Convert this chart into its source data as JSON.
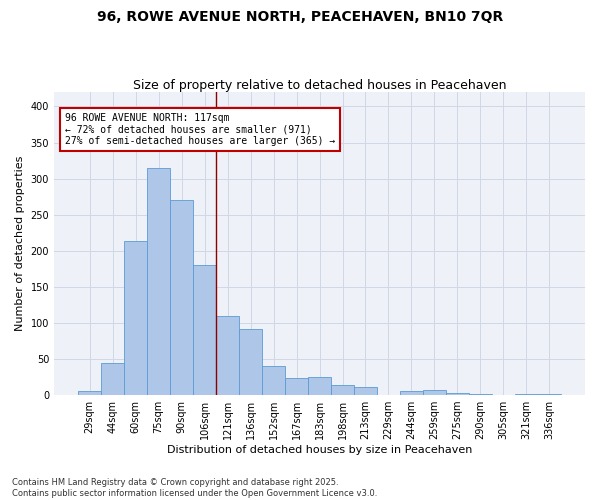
{
  "title": "96, ROWE AVENUE NORTH, PEACEHAVEN, BN10 7QR",
  "subtitle": "Size of property relative to detached houses in Peacehaven",
  "xlabel": "Distribution of detached houses by size in Peacehaven",
  "ylabel": "Number of detached properties",
  "bar_labels": [
    "29sqm",
    "44sqm",
    "60sqm",
    "75sqm",
    "90sqm",
    "106sqm",
    "121sqm",
    "136sqm",
    "152sqm",
    "167sqm",
    "183sqm",
    "198sqm",
    "213sqm",
    "229sqm",
    "244sqm",
    "259sqm",
    "275sqm",
    "290sqm",
    "305sqm",
    "321sqm",
    "336sqm"
  ],
  "bar_values": [
    5,
    44,
    213,
    315,
    271,
    180,
    110,
    91,
    40,
    23,
    25,
    14,
    11,
    0,
    6,
    7,
    3,
    1,
    0,
    1,
    2
  ],
  "bar_color": "#aec6e8",
  "bar_edge_color": "#5b9bd5",
  "vline_x": 5.5,
  "vline_color": "#8b0000",
  "annotation_text": "96 ROWE AVENUE NORTH: 117sqm\n← 72% of detached houses are smaller (971)\n27% of semi-detached houses are larger (365) →",
  "annotation_box_color": "#ffffff",
  "annotation_box_edge_color": "#c00000",
  "ylim": [
    0,
    420
  ],
  "yticks": [
    0,
    50,
    100,
    150,
    200,
    250,
    300,
    350,
    400
  ],
  "grid_color": "#d0d8e8",
  "bg_color": "#eef2f8",
  "footnote": "Contains HM Land Registry data © Crown copyright and database right 2025.\nContains public sector information licensed under the Open Government Licence v3.0.",
  "title_fontsize": 10,
  "subtitle_fontsize": 9,
  "label_fontsize": 8,
  "tick_fontsize": 7,
  "annot_fontsize": 7,
  "footnote_fontsize": 6
}
